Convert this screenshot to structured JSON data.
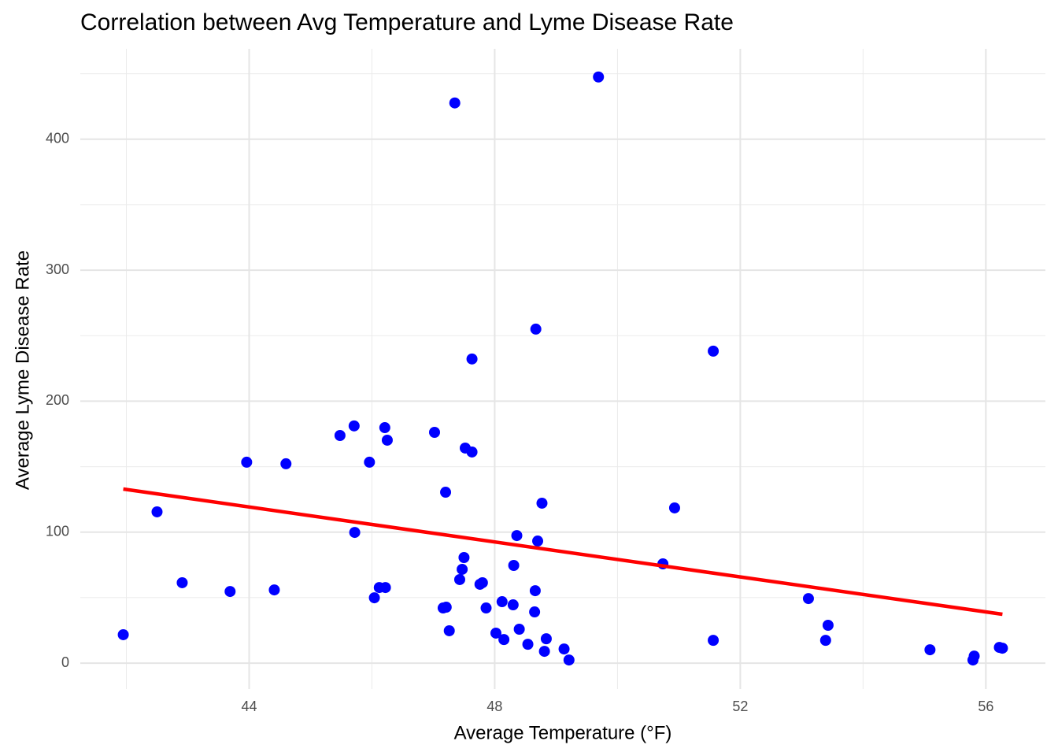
{
  "chart_data": {
    "type": "scatter",
    "title": "Correlation between Avg Temperature and Lyme Disease Rate",
    "x_label": "Average Temperature (°F)",
    "y_label": "Average Lyme Disease Rate",
    "color": "#0000ff",
    "x": [
      41.95,
      42.5,
      42.91,
      43.69,
      43.96,
      44.41,
      44.6,
      45.48,
      45.71,
      45.72,
      45.96,
      46.04,
      46.12,
      46.22,
      46.21,
      46.25,
      47.02,
      47.16,
      47.21,
      47.2,
      47.26,
      47.35,
      47.43,
      47.47,
      47.5,
      47.52,
      47.63,
      47.63,
      47.76,
      47.8,
      47.86,
      48.02,
      48.12,
      48.15,
      48.3,
      48.31,
      48.36,
      48.4,
      48.54,
      48.65,
      48.66,
      48.67,
      48.7,
      48.77,
      48.81,
      48.84,
      49.13,
      49.21,
      49.69,
      50.74,
      50.93,
      51.56,
      51.56,
      53.11,
      53.39,
      53.43,
      55.09,
      55.79,
      55.81,
      56.22,
      56.27
    ],
    "values": [
      21.7,
      115.5,
      61.4,
      54.7,
      153.4,
      55.9,
      152.2,
      173.8,
      181.1,
      99.8,
      153.4,
      49.9,
      57.7,
      57.7,
      179.8,
      170.2,
      176.2,
      42.1,
      42.7,
      130.5,
      24.7,
      427.7,
      63.8,
      71.6,
      80.6,
      164.2,
      161.2,
      232.2,
      60.2,
      61.4,
      42.1,
      22.9,
      46.9,
      18.0,
      44.5,
      74.6,
      97.4,
      25.9,
      14.4,
      39.1,
      55.3,
      255.0,
      93.2,
      122.1,
      9.0,
      18.6,
      10.8,
      2.4,
      447.5,
      75.8,
      118.5,
      17.4,
      238.2,
      49.3,
      17.4,
      28.9,
      10.2,
      2.4,
      5.4,
      12.0,
      11.4
    ],
    "trend": {
      "color": "#ff0000",
      "x": [
        41.95,
        56.27
      ],
      "values": [
        132.9,
        37.3
      ]
    },
    "xlim": [
      41.25,
      56.97
    ],
    "ylim": [
      -19.8,
      469
    ],
    "xticks": [
      44,
      48,
      52,
      56
    ],
    "yticks": [
      0,
      100,
      200,
      300,
      400
    ],
    "x_minor_grid": [
      42,
      46,
      50,
      54
    ],
    "y_minor_grid": [
      50,
      150,
      250,
      350,
      450
    ],
    "grid": true
  }
}
